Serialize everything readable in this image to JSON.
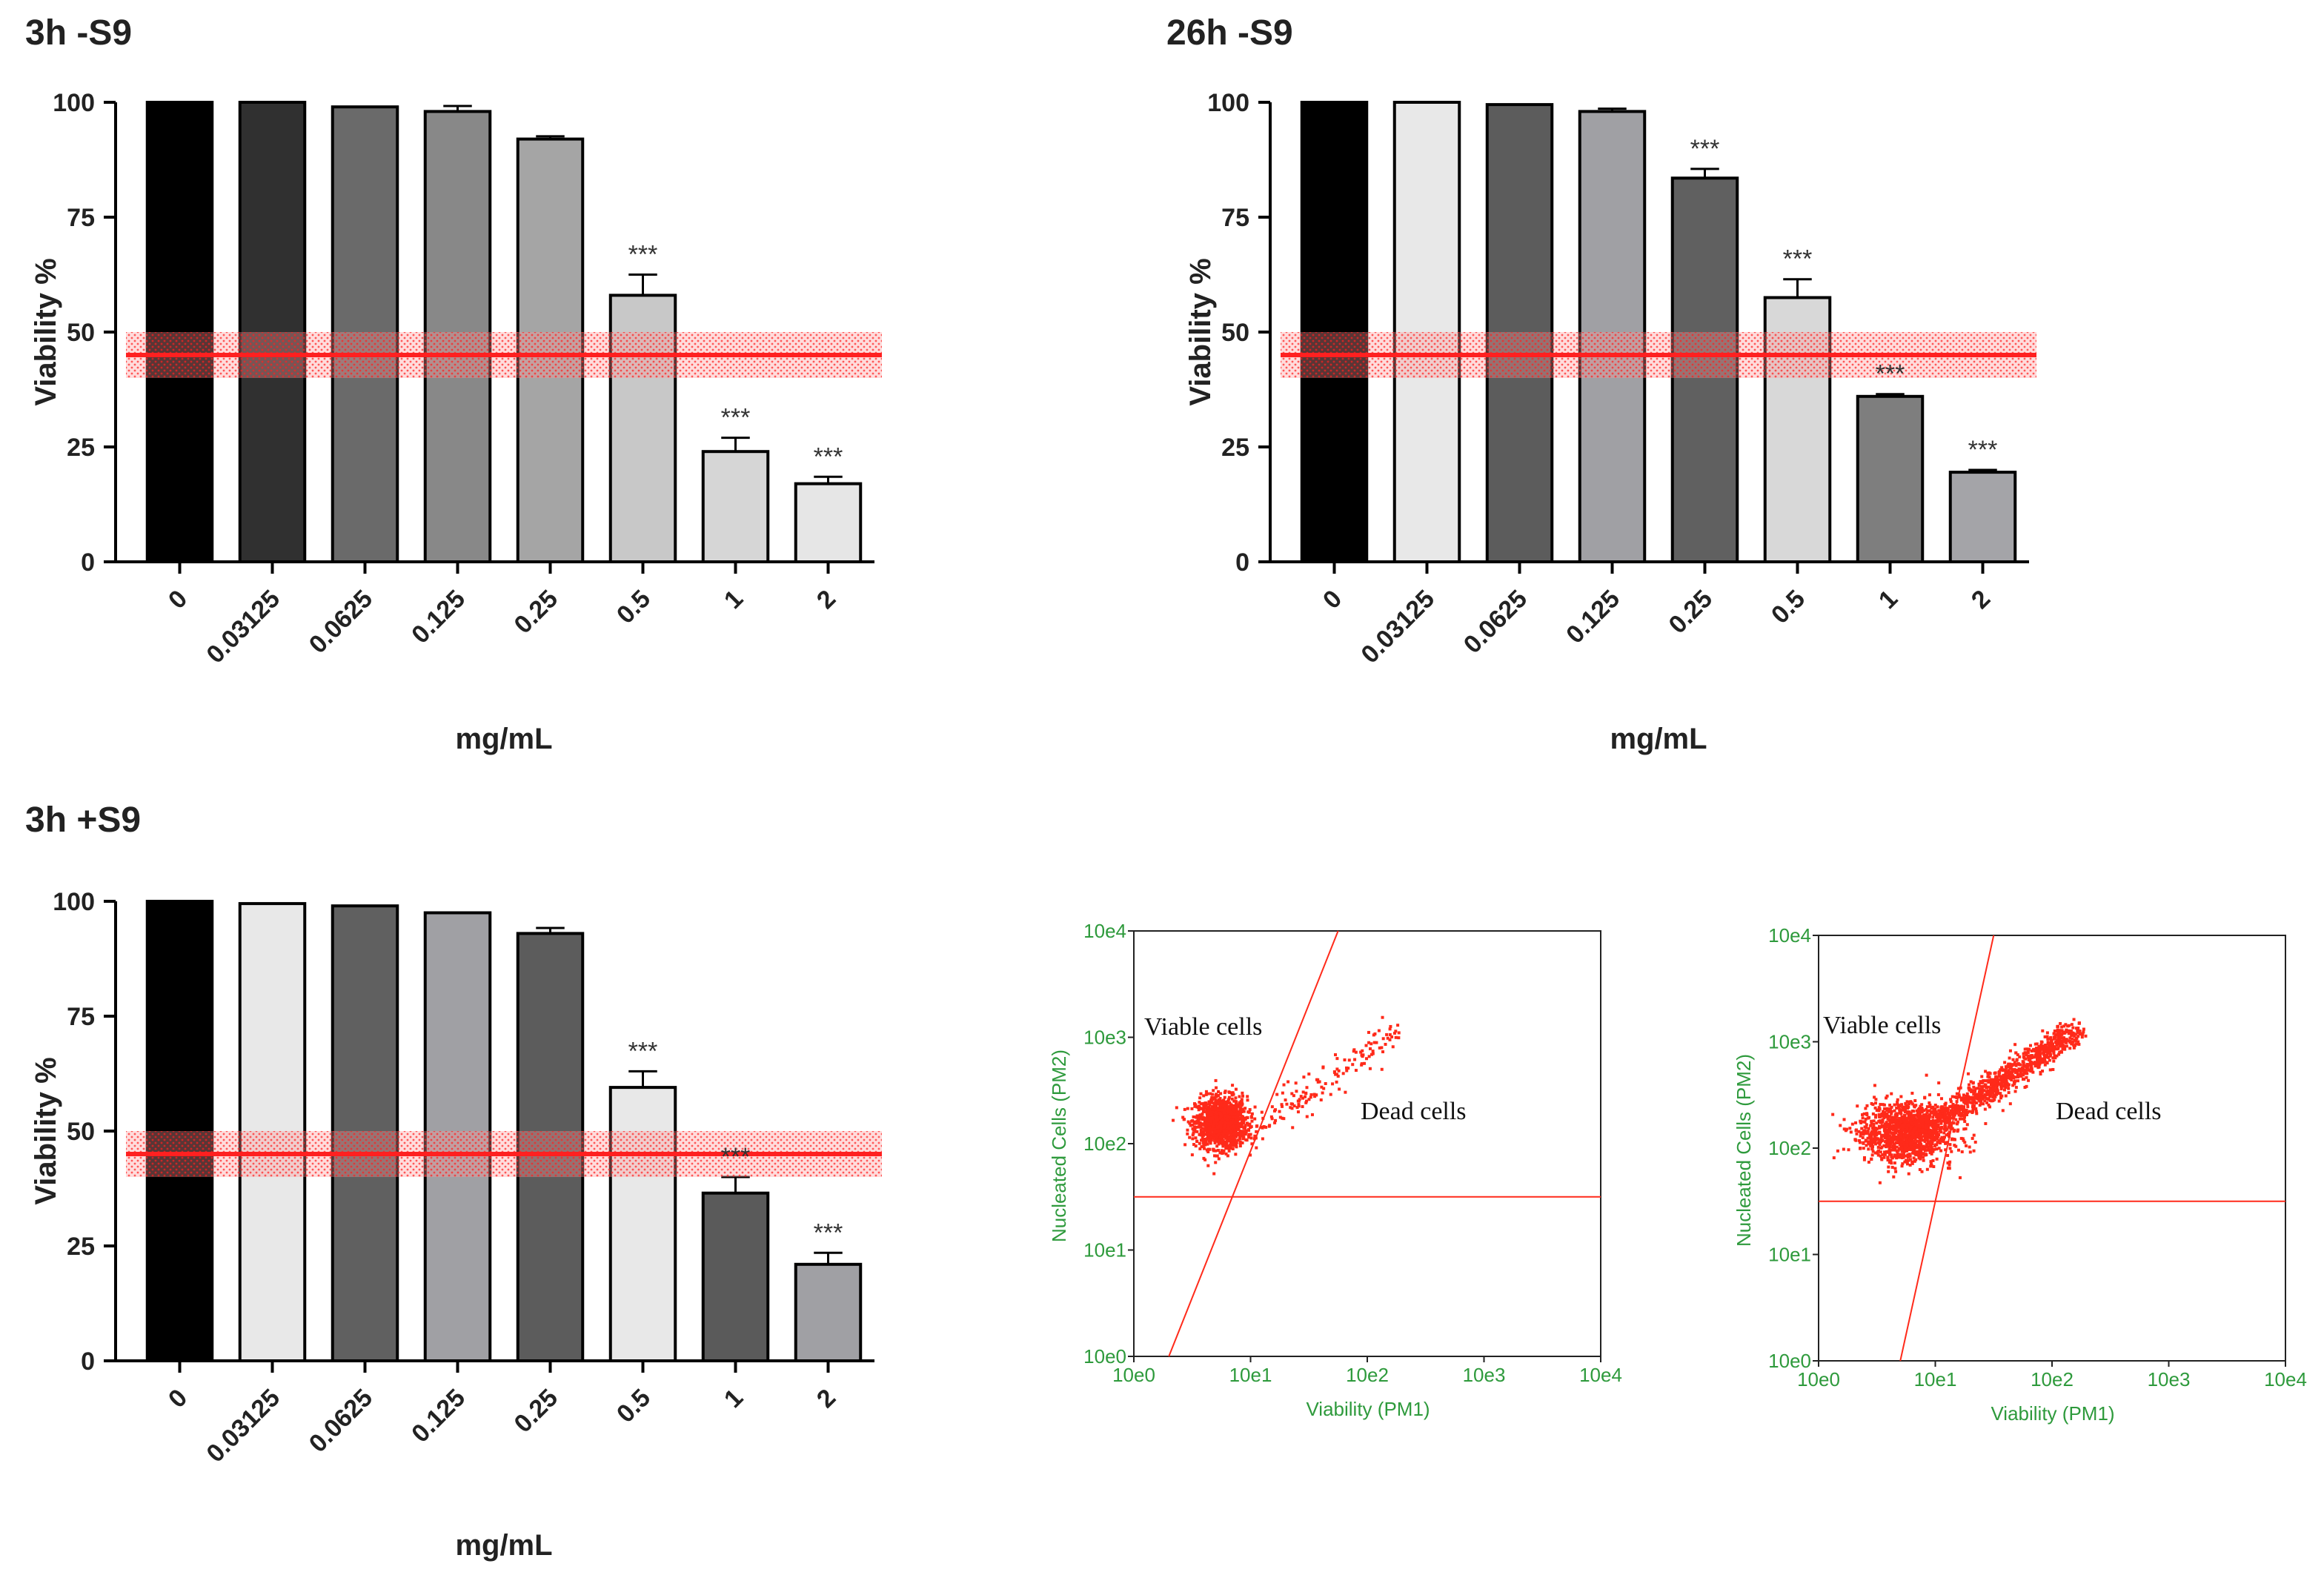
{
  "colors": {
    "threshold_line": "#ff2020",
    "threshold_band": "#ff9a9a",
    "bar_outline": "#000000",
    "axis": "#000000",
    "flow_axis_text": "#2e9a3c",
    "flow_points": "#ff2a1a",
    "flow_gates": "#ff2a1a"
  },
  "chart_data": [
    {
      "id": "p1",
      "type": "bar",
      "title": "3h -S9",
      "xlabel": "mg/mL",
      "ylabel": "Viability %",
      "ylim": [
        0,
        100
      ],
      "yticks": [
        "0",
        "25",
        "50",
        "75",
        "100"
      ],
      "categories": [
        "0",
        "0.03125",
        "0.0625",
        "0.125",
        "0.25",
        "0.5",
        "1",
        "2"
      ],
      "values": [
        100,
        100,
        99,
        98,
        92,
        58,
        24,
        17
      ],
      "errors": [
        0,
        0,
        0,
        1.2,
        0.6,
        4.5,
        3,
        1.5
      ],
      "bar_colors": [
        "#000000",
        "#303030",
        "#6a6a6a",
        "#888888",
        "#a5a5a5",
        "#c8c8c8",
        "#d6d6d6",
        "#e6e6e6"
      ],
      "significance": [
        "",
        "",
        "",
        "",
        "",
        "***",
        "***",
        "***"
      ],
      "threshold": 45,
      "threshold_band": [
        40,
        50
      ]
    },
    {
      "id": "p2",
      "type": "bar",
      "title": "26h -S9",
      "xlabel": "mg/mL",
      "ylabel": "Viability %",
      "ylim": [
        0,
        100
      ],
      "yticks": [
        "0",
        "25",
        "50",
        "75",
        "100"
      ],
      "categories": [
        "0",
        "0.03125",
        "0.0625",
        "0.125",
        "0.25",
        "0.5",
        "1",
        "2"
      ],
      "values": [
        100,
        100,
        99.5,
        98,
        83.5,
        57.5,
        36,
        19.5
      ],
      "errors": [
        0,
        0,
        0,
        0.6,
        2,
        4,
        0.5,
        0.5
      ],
      "bar_colors": [
        "#000000",
        "#e8e8e8",
        "#5c5c5c",
        "#a0a0a4",
        "#606060",
        "#d8d8d8",
        "#7e7e7e",
        "#a4a4a8"
      ],
      "significance": [
        "",
        "",
        "",
        "",
        "***",
        "***",
        "***",
        "***"
      ],
      "threshold": 45,
      "threshold_band": [
        40,
        50
      ]
    },
    {
      "id": "p3",
      "type": "bar",
      "title": "3h +S9",
      "xlabel": "mg/mL",
      "ylabel": "Viability %",
      "ylim": [
        0,
        100
      ],
      "yticks": [
        "0",
        "25",
        "50",
        "75",
        "100"
      ],
      "categories": [
        "0",
        "0.03125",
        "0.0625",
        "0.125",
        "0.25",
        "0.5",
        "1",
        "2"
      ],
      "values": [
        100,
        99.5,
        99,
        97.5,
        93,
        59.5,
        36.5,
        21
      ],
      "errors": [
        0,
        0,
        0,
        0,
        1.2,
        3.5,
        3.5,
        2.5
      ],
      "bar_colors": [
        "#000000",
        "#e8e8e8",
        "#606060",
        "#a0a0a4",
        "#5c5c5c",
        "#e8e8e8",
        "#5a5a5a",
        "#a0a0a4"
      ],
      "significance": [
        "",
        "",
        "",
        "",
        "",
        "***",
        "***",
        "***"
      ],
      "threshold": 45,
      "threshold_band": [
        40,
        50
      ]
    },
    {
      "id": "f1",
      "type": "scatter",
      "xlabel": "Viability (PM1)",
      "ylabel": "Nucleated Cells (PM2)",
      "xticks": [
        "10e0",
        "10e1",
        "10e2",
        "10e3",
        "10e4"
      ],
      "yticks": [
        "10e0",
        "10e1",
        "10e2",
        "10e3",
        "10e4"
      ],
      "xlim_log10": [
        0,
        4
      ],
      "ylim_log10": [
        0,
        4
      ],
      "annotations": {
        "viable": "Viable cells",
        "dead": "Dead cells"
      },
      "gate_horizontal_log10": 1.5,
      "gate_diagonal_log10": [
        [
          0.3,
          0
        ],
        [
          1.75,
          4
        ]
      ],
      "viable_cluster": {
        "x_log10": 0.75,
        "y_log10": 2.2,
        "sx": 0.11,
        "sy": 0.12,
        "n": 1300
      },
      "dead_trail": {
        "from_log10": [
          0.9,
          2.0
        ],
        "to_log10": [
          2.25,
          3.05
        ],
        "n": 160,
        "spread": 0.07
      }
    },
    {
      "id": "f2",
      "type": "scatter",
      "xlabel": "Viability (PM1)",
      "ylabel": "Nucleated Cells (PM2)",
      "xticks": [
        "10e0",
        "10e1",
        "10e2",
        "10e3",
        "10e4"
      ],
      "yticks": [
        "10e0",
        "10e1",
        "10e2",
        "10e3",
        "10e4"
      ],
      "xlim_log10": [
        0,
        4
      ],
      "ylim_log10": [
        0,
        4
      ],
      "annotations": {
        "viable": "Viable cells",
        "dead": "Dead cells"
      },
      "gate_horizontal_log10": 1.5,
      "gate_diagonal_log10": [
        [
          0.7,
          0
        ],
        [
          1.5,
          4
        ]
      ],
      "viable_cluster": {
        "x_log10": 0.75,
        "y_log10": 2.15,
        "sx": 0.2,
        "sy": 0.14,
        "n": 1300
      },
      "dead_trail": {
        "from_log10": [
          0.9,
          2.15
        ],
        "to_log10": [
          2.2,
          3.1
        ],
        "n": 1000,
        "spread": 0.06
      }
    }
  ]
}
